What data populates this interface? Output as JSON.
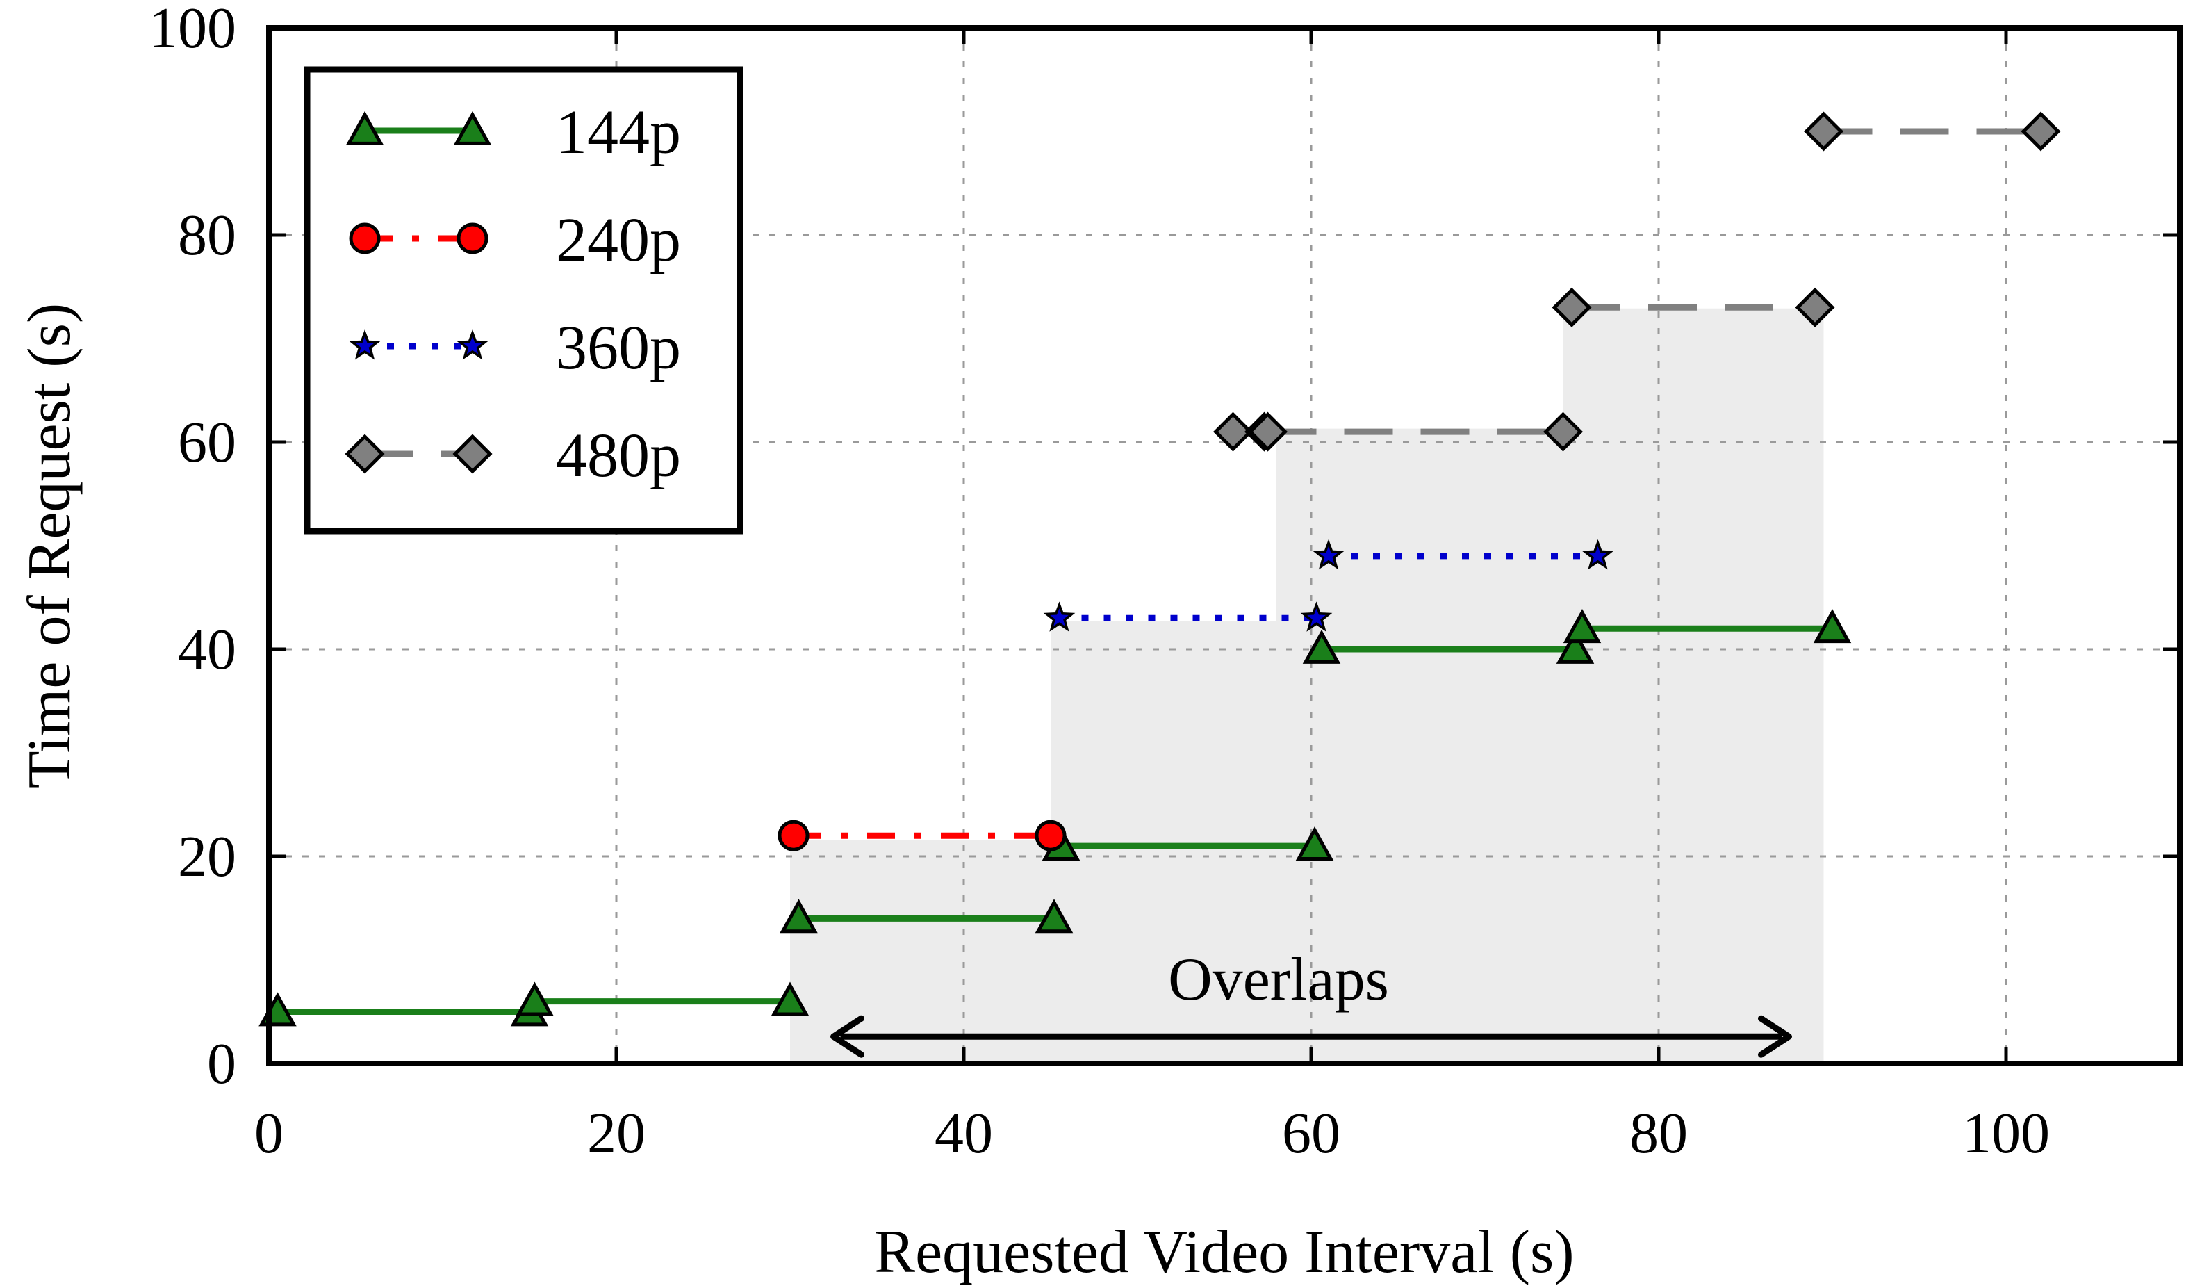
{
  "chart_data": {
    "type": "line",
    "xlabel": "Requested Video Interval (s)",
    "ylabel": "Time of Request (s)",
    "xlim": [
      0,
      110
    ],
    "ylim": [
      0,
      100
    ],
    "xticks": [
      0,
      20,
      40,
      60,
      80,
      100
    ],
    "yticks": [
      0,
      20,
      40,
      60,
      80,
      100
    ],
    "grid": true,
    "legend_position": "top-left",
    "overlap_region": {
      "label": "Overlaps",
      "arrow_x": [
        32.5,
        87.5
      ],
      "arrow_y": 2.6,
      "steps": [
        {
          "x0": 30,
          "x1": 45,
          "top": 21.6
        },
        {
          "x0": 45,
          "x1": 58,
          "top": 42.7
        },
        {
          "x0": 58,
          "x1": 74.5,
          "top": 61.3
        },
        {
          "x0": 74.5,
          "x1": 89.5,
          "top": 72.9
        }
      ]
    },
    "series": [
      {
        "name": "144p",
        "color": "#1a7f1a",
        "marker": "triangle",
        "line": "solid",
        "segments": [
          [
            [
              0.5,
              5
            ],
            [
              15,
              5
            ]
          ],
          [
            [
              15.3,
              6
            ],
            [
              30,
              6
            ]
          ],
          [
            [
              30.5,
              14
            ],
            [
              45.2,
              14
            ]
          ],
          [
            [
              45.6,
              21
            ],
            [
              60.2,
              21
            ]
          ],
          [
            [
              60.6,
              40
            ],
            [
              75.2,
              40
            ]
          ],
          [
            [
              75.6,
              42
            ],
            [
              90,
              42
            ]
          ]
        ]
      },
      {
        "name": "240p",
        "color": "#ff0000",
        "marker": "circle",
        "line": "dashdot",
        "segments": [
          [
            [
              30.2,
              22
            ],
            [
              45,
              22
            ]
          ]
        ]
      },
      {
        "name": "360p",
        "color": "#0000cc",
        "marker": "star",
        "line": "dotted",
        "segments": [
          [
            [
              45.5,
              43
            ],
            [
              60.3,
              43
            ]
          ],
          [
            [
              61,
              49
            ],
            [
              76.5,
              49
            ]
          ]
        ]
      },
      {
        "name": "480p",
        "color": "#808080",
        "marker": "diamond",
        "line": "dashed",
        "segments": [
          [
            [
              55.5,
              61
            ],
            [
              57.3,
              61
            ]
          ],
          [
            [
              57.5,
              61
            ],
            [
              74.5,
              61
            ]
          ],
          [
            [
              75,
              73
            ],
            [
              89,
              73
            ]
          ],
          [
            [
              89.5,
              90
            ],
            [
              102,
              90
            ]
          ]
        ]
      }
    ]
  }
}
